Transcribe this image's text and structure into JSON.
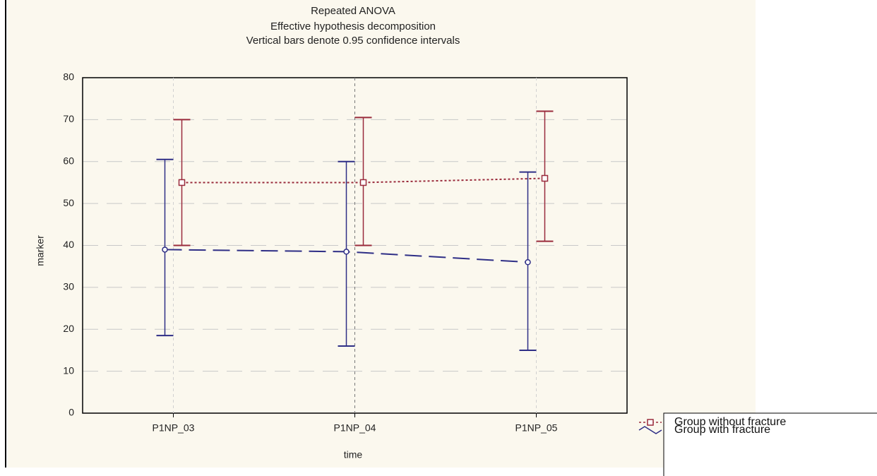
{
  "chart_data": {
    "type": "line",
    "title": [
      "Repeated ANOVA",
      "Effective hypothesis decomposition",
      "Vertical bars denote 0.95 confidence intervals"
    ],
    "x_label": "time",
    "y_label": "marker",
    "categories": [
      "P1NP_03",
      "P1NP_04",
      "P1NP_05"
    ],
    "series": [
      {
        "name": "Group with fracture",
        "color": "#2e2e86",
        "values": [
          39,
          38.5,
          36
        ],
        "lower": [
          18.5,
          16,
          15
        ],
        "upper": [
          60.5,
          60,
          57.5
        ]
      },
      {
        "name": "Group without fracture",
        "color": "#9a2b3c",
        "values": [
          55,
          55,
          56
        ],
        "lower": [
          40,
          40,
          41
        ],
        "upper": [
          70,
          70.5,
          72
        ]
      }
    ],
    "ylim": [
      0,
      80
    ],
    "yticks": [
      0,
      10,
      20,
      30,
      40,
      50,
      60,
      70,
      80
    ],
    "grid": true
  }
}
